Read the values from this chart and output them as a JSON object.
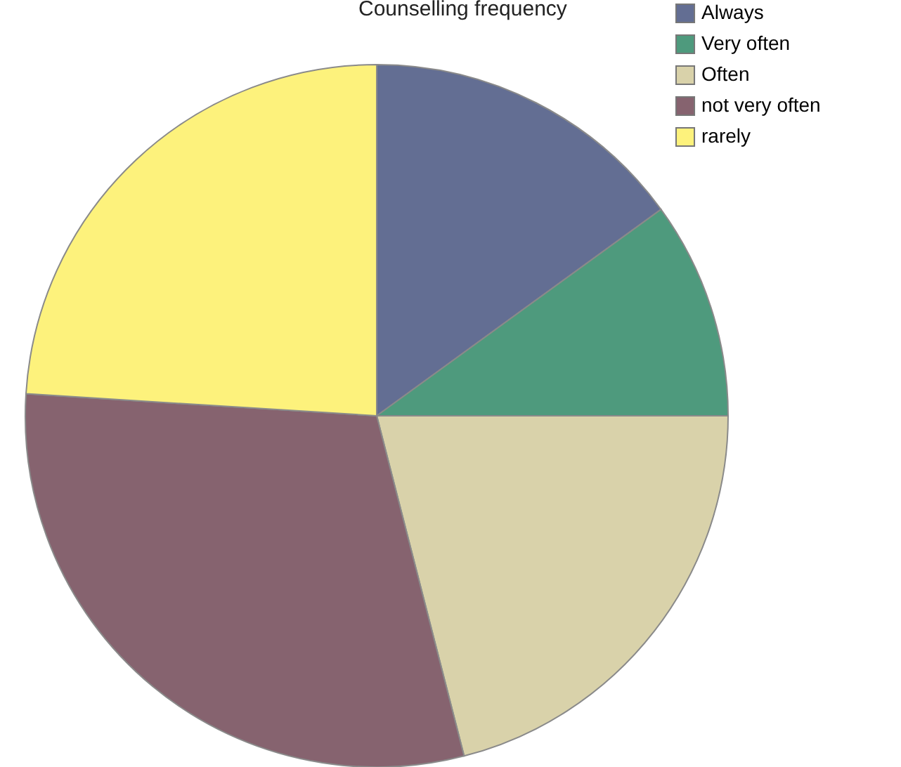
{
  "chart_data": {
    "type": "pie",
    "title": "Counselling frequency",
    "categories": [
      "Always",
      "Very often",
      "Often",
      "not very often",
      "rarely"
    ],
    "values": [
      15,
      10,
      21,
      30,
      24
    ],
    "colors": [
      "#636e93",
      "#4e9a7d",
      "#d9d2aa",
      "#86636f",
      "#fdf27c"
    ],
    "legend": "top right"
  }
}
